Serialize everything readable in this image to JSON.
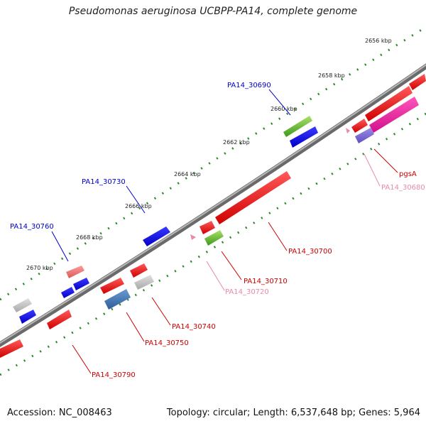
{
  "title": "Pseudomonas aeruginosa UCBPP-PA14, complete genome",
  "footer": {
    "accession": "Accession: NC_008463",
    "summary": "Topology: circular; Length: 6,537,648 bp; Genes: 5,964"
  },
  "ticks": [
    "2656 kbp",
    "2658 kbp",
    "2660 kbp",
    "2662 kbp",
    "2664 kbp",
    "2666 kbp",
    "2668 kbp",
    "2670 kbp"
  ],
  "genes": [
    {
      "label": "PA14_30690",
      "color": "#0000cc"
    },
    {
      "label": "PA14_30730",
      "color": "#0000cc"
    },
    {
      "label": "PA14_30760",
      "color": "#0000cc"
    },
    {
      "label": "PA14_30700",
      "color": "#cc0000"
    },
    {
      "label": "PA14_30710",
      "color": "#cc0000"
    },
    {
      "label": "PA14_30720",
      "color": "#e88aa8"
    },
    {
      "label": "PA14_30740",
      "color": "#cc0000"
    },
    {
      "label": "PA14_30750",
      "color": "#cc0000"
    },
    {
      "label": "PA14_30790",
      "color": "#cc0000"
    },
    {
      "label": "pgsA",
      "color": "#cc0000"
    },
    {
      "label": "PA14_30680",
      "color": "#e88aa8"
    }
  ],
  "colors": {
    "backbone": "#888888",
    "tick_green": "#2a8a2a",
    "blue_gene": "#0000ee",
    "red_gene": "#ee0000",
    "pink_label": "#e88aa8"
  }
}
